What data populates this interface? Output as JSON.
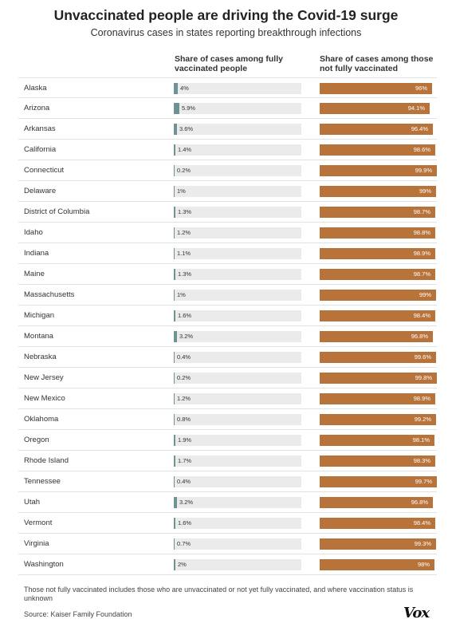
{
  "title": "Unvaccinated people are driving the Covid-19 surge",
  "subtitle": "Coronavirus cases in states reporting breakthrough infections",
  "footnote": "Those not fully vaccinated includes those who are unvaccinated or not yet fully vaccinated, and where vaccination status is unknown",
  "source": "Source: Kaiser Family Foundation",
  "logo": "Vox",
  "colors": {
    "vaccinated": "#6f9395",
    "not_vaccinated": "#b8733a",
    "track": "#ebebeb"
  },
  "chart_data": {
    "type": "bar",
    "categories": [
      "Alaska",
      "Arizona",
      "Arkansas",
      "California",
      "Connecticut",
      "Delaware",
      "District of Columbia",
      "Idaho",
      "Indiana",
      "Maine",
      "Massachusetts",
      "Michigan",
      "Montana",
      "Nebraska",
      "New Jersey",
      "New Mexico",
      "Oklahoma",
      "Oregon",
      "Rhode Island",
      "Tennessee",
      "Utah",
      "Vermont",
      "Virginia",
      "Washington"
    ],
    "series": [
      {
        "name": "Share of cases among fully vaccinated people",
        "values": [
          4,
          5.9,
          3.6,
          1.4,
          0.2,
          1,
          1.3,
          1.2,
          1.1,
          1.3,
          1,
          1.6,
          3.2,
          0.4,
          0.2,
          1.2,
          0.8,
          1.9,
          1.7,
          0.4,
          3.2,
          1.6,
          0.7,
          2
        ],
        "labels": [
          "4%",
          "5.9%",
          "3.6%",
          "1.4%",
          "0.2%",
          "1%",
          "1.3%",
          "1.2%",
          "1.1%",
          "1.3%",
          "1%",
          "1.6%",
          "3.2%",
          "0.4%",
          "0.2%",
          "1.2%",
          "0.8%",
          "1.9%",
          "1.7%",
          "0.4%",
          "3.2%",
          "1.6%",
          "0.7%",
          "2%"
        ]
      },
      {
        "name": "Share of cases among those not fully vaccinated",
        "values": [
          96,
          94.1,
          96.4,
          98.6,
          99.9,
          99,
          98.7,
          98.8,
          98.9,
          98.7,
          99,
          98.4,
          96.8,
          99.6,
          99.8,
          98.9,
          99.2,
          98.1,
          98.3,
          99.7,
          96.8,
          98.4,
          99.3,
          98
        ],
        "labels": [
          "96%",
          "94.1%",
          "96.4%",
          "98.6%",
          "99.9%",
          "99%",
          "98.7%",
          "98.8%",
          "98.9%",
          "98.7%",
          "99%",
          "98.4%",
          "96.8%",
          "99.6%",
          "99.8%",
          "98.9%",
          "99.2%",
          "98.1%",
          "98.3%",
          "99.7%",
          "96.8%",
          "98.4%",
          "99.3%",
          "98%"
        ]
      }
    ],
    "ylim": [
      0,
      100
    ],
    "legend": "column headers"
  }
}
